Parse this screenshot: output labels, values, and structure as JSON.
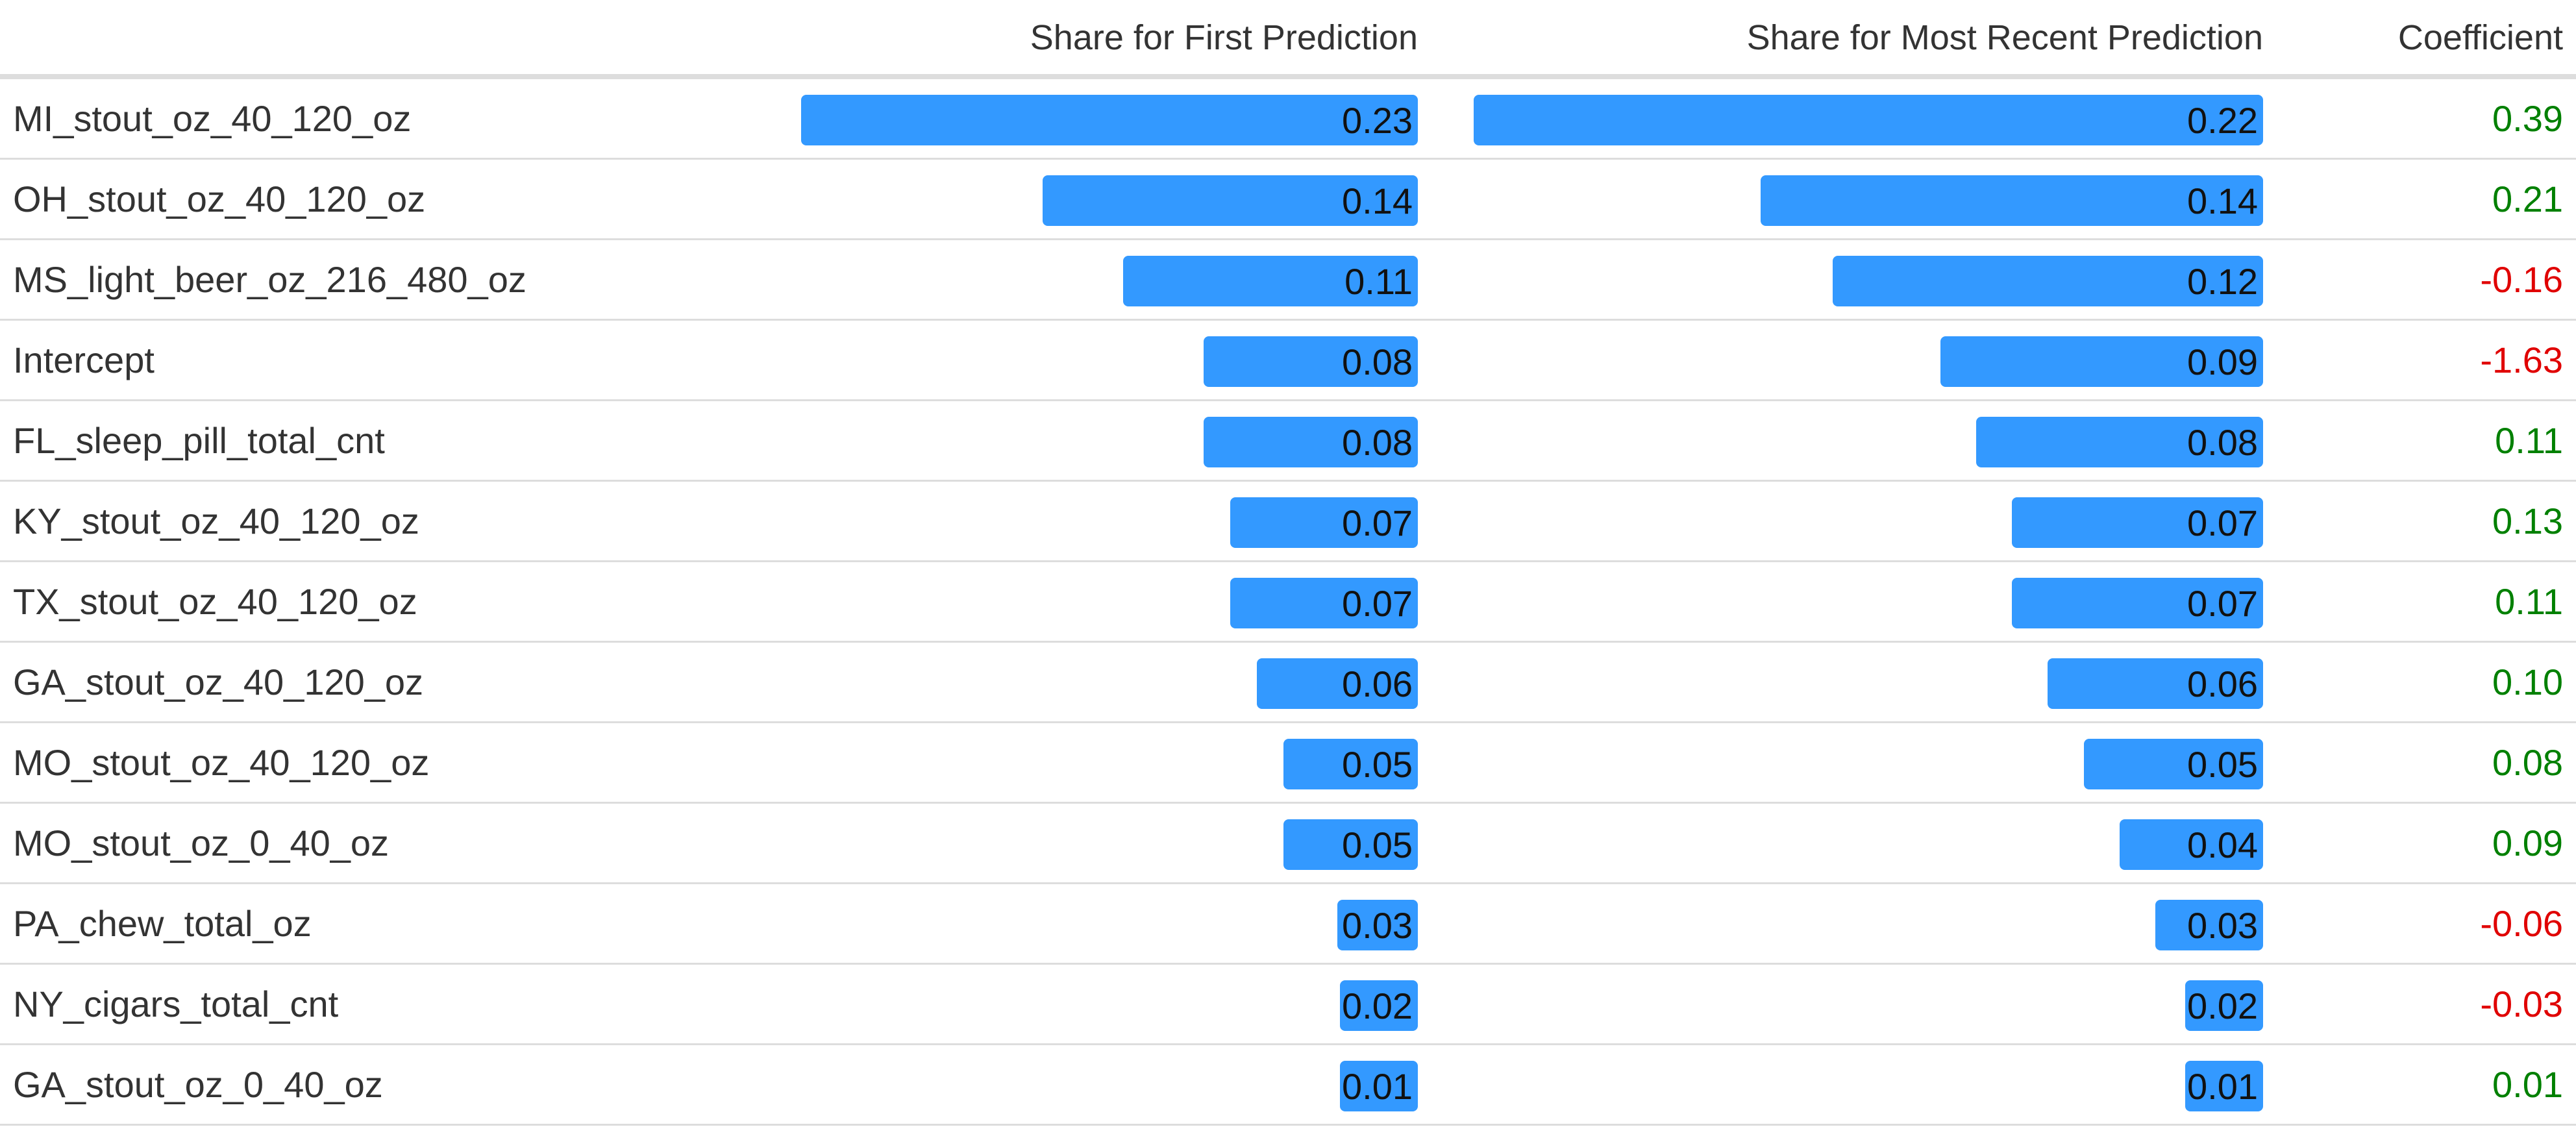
{
  "chart_data": {
    "type": "table",
    "columns": [
      "",
      "Share for First Prediction",
      "Share for Most Recent Prediction",
      "Coefficient"
    ],
    "rows": [
      {
        "feature": "MI_stout_oz_40_120_oz",
        "first": "0.23",
        "recent": "0.22",
        "coef": "0.39"
      },
      {
        "feature": "OH_stout_oz_40_120_oz",
        "first": "0.14",
        "recent": "0.14",
        "coef": "0.21"
      },
      {
        "feature": "MS_light_beer_oz_216_480_oz",
        "first": "0.11",
        "recent": "0.12",
        "coef": "-0.16"
      },
      {
        "feature": "Intercept",
        "first": "0.08",
        "recent": "0.09",
        "coef": "-1.63"
      },
      {
        "feature": "FL_sleep_pill_total_cnt",
        "first": "0.08",
        "recent": "0.08",
        "coef": "0.11"
      },
      {
        "feature": "KY_stout_oz_40_120_oz",
        "first": "0.07",
        "recent": "0.07",
        "coef": "0.13"
      },
      {
        "feature": "TX_stout_oz_40_120_oz",
        "first": "0.07",
        "recent": "0.07",
        "coef": "0.11"
      },
      {
        "feature": "GA_stout_oz_40_120_oz",
        "first": "0.06",
        "recent": "0.06",
        "coef": "0.10"
      },
      {
        "feature": "MO_stout_oz_40_120_oz",
        "first": "0.05",
        "recent": "0.05",
        "coef": "0.08"
      },
      {
        "feature": "MO_stout_oz_0_40_oz",
        "first": "0.05",
        "recent": "0.04",
        "coef": "0.09"
      },
      {
        "feature": "PA_chew_total_oz",
        "first": "0.03",
        "recent": "0.03",
        "coef": "-0.06"
      },
      {
        "feature": "NY_cigars_total_cnt",
        "first": "0.02",
        "recent": "0.02",
        "coef": "-0.03"
      },
      {
        "feature": "GA_stout_oz_0_40_oz",
        "first": "0.01",
        "recent": "0.01",
        "coef": "0.01"
      }
    ],
    "bar_color": "#3399ff",
    "positive_color": "#008000",
    "negative_color": "#e00000"
  }
}
